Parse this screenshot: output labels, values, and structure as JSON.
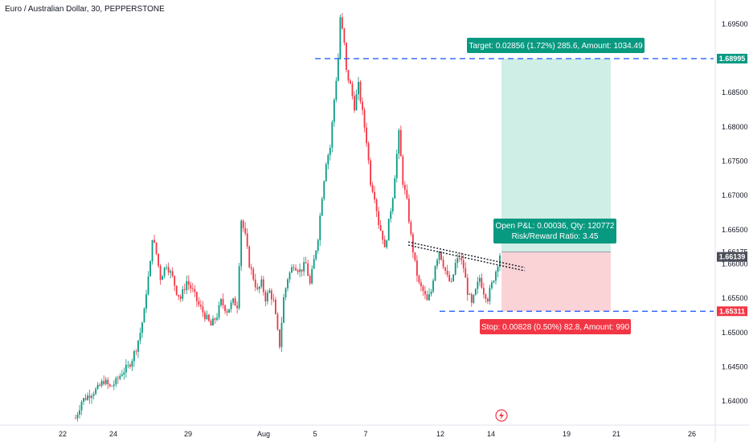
{
  "symbol_title": "Euro / Australian Dollar, 30, PEPPERSTONE",
  "chart_data": {
    "type": "candlestick",
    "title": "Euro / Australian Dollar, 30, PEPPERSTONE",
    "x_tick_labels": [
      "22",
      "24",
      "29",
      "Aug",
      "5",
      "7",
      "12",
      "14",
      "19",
      "21",
      "26"
    ],
    "y_tick_labels": [
      "1.69500",
      "1.69000",
      "1.68500",
      "1.68000",
      "1.67500",
      "1.67000",
      "1.66500",
      "1.66000",
      "1.65500",
      "1.65000",
      "1.64500",
      "1.64000"
    ],
    "ylim": [
      1.6365,
      1.6985
    ],
    "current_price": 1.66139,
    "target_price": 1.68995,
    "entry_price": 1.66175,
    "stop_price": 1.65311,
    "price_tag_labels": [
      "1.68995",
      "1.66175",
      "1.66139",
      "1.65311"
    ],
    "target_label": "Target: 0.02856 (1.72%) 285.6, Amount: 1034.49",
    "open_pnl_label": "Open P&L: 0.00036, Qty: 120772",
    "risk_reward_label": "Risk/Reward Ratio: 3.45",
    "stop_label": "Stop: 0.00828 (0.50%) 82.8, Amount: 990",
    "price_path": [
      [
        0,
        1.6375
      ],
      [
        3,
        1.64
      ],
      [
        7,
        1.641
      ],
      [
        11,
        1.6418
      ],
      [
        14,
        1.643
      ],
      [
        17,
        1.642
      ],
      [
        20,
        1.6428
      ],
      [
        23,
        1.6442
      ],
      [
        26,
        1.645
      ],
      [
        28,
        1.6462
      ],
      [
        30,
        1.6478
      ],
      [
        32,
        1.65
      ],
      [
        34,
        1.653
      ],
      [
        35,
        1.656
      ],
      [
        37,
        1.66
      ],
      [
        38,
        1.664
      ],
      [
        40,
        1.6615
      ],
      [
        42,
        1.658
      ],
      [
        45,
        1.66
      ],
      [
        48,
        1.658
      ],
      [
        50,
        1.656
      ],
      [
        52,
        1.655
      ],
      [
        55,
        1.6575
      ],
      [
        58,
        1.656
      ],
      [
        61,
        1.654
      ],
      [
        64,
        1.6525
      ],
      [
        67,
        1.651
      ],
      [
        70,
        1.6525
      ],
      [
        72,
        1.6545
      ],
      [
        75,
        1.6532
      ],
      [
        78,
        1.6545
      ],
      [
        80,
        1.654
      ],
      [
        82,
        1.6665
      ],
      [
        84,
        1.664
      ],
      [
        86,
        1.66
      ],
      [
        88,
        1.658
      ],
      [
        90,
        1.656
      ],
      [
        92,
        1.6572
      ],
      [
        94,
        1.655
      ],
      [
        96,
        1.656
      ],
      [
        98,
        1.6545
      ],
      [
        100,
        1.65
      ],
      [
        101,
        1.6482
      ],
      [
        103,
        1.655
      ],
      [
        105,
        1.658
      ],
      [
        108,
        1.66
      ],
      [
        111,
        1.659
      ],
      [
        114,
        1.66
      ],
      [
        116,
        1.657
      ],
      [
        118,
        1.6605
      ],
      [
        120,
        1.664
      ],
      [
        122,
        1.67
      ],
      [
        124,
        1.675
      ],
      [
        126,
        1.677
      ],
      [
        128,
        1.684
      ],
      [
        130,
        1.69
      ],
      [
        131,
        1.696
      ],
      [
        133,
        1.692
      ],
      [
        134,
        1.688
      ],
      [
        136,
        1.686
      ],
      [
        138,
        1.683
      ],
      [
        140,
        1.686
      ],
      [
        142,
        1.682
      ],
      [
        144,
        1.678
      ],
      [
        146,
        1.672
      ],
      [
        148,
        1.67
      ],
      [
        150,
        1.666
      ],
      [
        152,
        1.664
      ],
      [
        153,
        1.662
      ],
      [
        155,
        1.666
      ],
      [
        157,
        1.67
      ],
      [
        159,
        1.676
      ],
      [
        160,
        1.679
      ],
      [
        162,
        1.672
      ],
      [
        164,
        1.669
      ],
      [
        166,
        1.664
      ],
      [
        168,
        1.66
      ],
      [
        170,
        1.657
      ],
      [
        172,
        1.656
      ],
      [
        174,
        1.6545
      ],
      [
        176,
        1.656
      ],
      [
        178,
        1.66
      ],
      [
        180,
        1.662
      ],
      [
        182,
        1.66
      ],
      [
        184,
        1.658
      ],
      [
        186,
        1.657
      ],
      [
        188,
        1.66
      ],
      [
        190,
        1.661
      ],
      [
        192,
        1.6595
      ],
      [
        194,
        1.656
      ],
      [
        196,
        1.654
      ],
      [
        198,
        1.656
      ],
      [
        200,
        1.658
      ],
      [
        202,
        1.656
      ],
      [
        204,
        1.655
      ],
      [
        206,
        1.657
      ],
      [
        208,
        1.659
      ],
      [
        210,
        1.6614
      ]
    ]
  }
}
